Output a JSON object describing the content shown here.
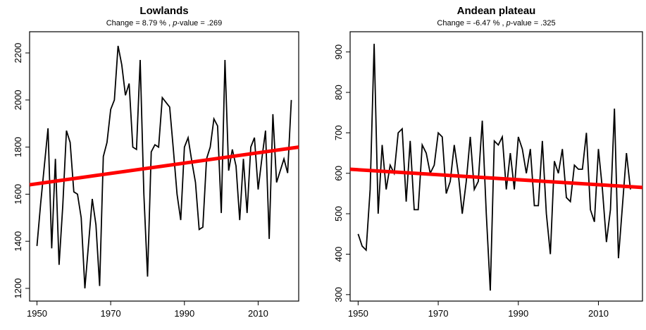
{
  "chart_data": [
    {
      "type": "line",
      "title": "Lowlands",
      "subtitle": [
        "Change = 8.79 % , ",
        "p",
        "-value = .269"
      ],
      "x": [
        1950,
        1951,
        1952,
        1953,
        1954,
        1955,
        1956,
        1957,
        1958,
        1959,
        1960,
        1961,
        1962,
        1963,
        1964,
        1965,
        1966,
        1967,
        1968,
        1969,
        1970,
        1971,
        1972,
        1973,
        1974,
        1975,
        1976,
        1977,
        1978,
        1979,
        1980,
        1981,
        1982,
        1983,
        1984,
        1985,
        1986,
        1987,
        1988,
        1989,
        1990,
        1991,
        1992,
        1993,
        1994,
        1995,
        1996,
        1997,
        1998,
        1999,
        2000,
        2001,
        2002,
        2003,
        2004,
        2005,
        2006,
        2007,
        2008,
        2009,
        2010,
        2011,
        2012,
        2013,
        2014,
        2015,
        2016,
        2017,
        2018,
        2019
      ],
      "series": [
        {
          "color": "#000000",
          "values": [
            1380,
            1560,
            1720,
            1880,
            1370,
            1750,
            1300,
            1550,
            1870,
            1820,
            1610,
            1600,
            1500,
            1200,
            1390,
            1580,
            1470,
            1210,
            1760,
            1820,
            1960,
            2000,
            2230,
            2150,
            2020,
            2070,
            1800,
            1790,
            2170,
            1600,
            1250,
            1780,
            1810,
            1800,
            2010,
            1990,
            1970,
            1790,
            1600,
            1490,
            1800,
            1840,
            1740,
            1650,
            1450,
            1460,
            1750,
            1800,
            1920,
            1890,
            1520,
            2170,
            1700,
            1790,
            1720,
            1490,
            1750,
            1520,
            1800,
            1840,
            1620,
            1750,
            1870,
            1410,
            1940,
            1650,
            1700,
            1750,
            1690,
            2000
          ]
        }
      ],
      "trend": {
        "x": [
          1948,
          2021
        ],
        "values": [
          1640,
          1800
        ],
        "color": "#ff0000"
      },
      "xlim": [
        1948,
        2021
      ],
      "xticks": [
        1950,
        1970,
        1990,
        2010
      ],
      "ylim": [
        1146,
        2290
      ],
      "yticks": [
        1200,
        1400,
        1600,
        1800,
        2000,
        2200
      ]
    },
    {
      "type": "line",
      "title": "Andean plateau",
      "subtitle": [
        "Change = -6.47 % , ",
        "p",
        "-value = .325"
      ],
      "x": [
        1950,
        1951,
        1952,
        1953,
        1954,
        1955,
        1956,
        1957,
        1958,
        1959,
        1960,
        1961,
        1962,
        1963,
        1964,
        1965,
        1966,
        1967,
        1968,
        1969,
        1970,
        1971,
        1972,
        1973,
        1974,
        1975,
        1976,
        1977,
        1978,
        1979,
        1980,
        1981,
        1982,
        1983,
        1984,
        1985,
        1986,
        1987,
        1988,
        1989,
        1990,
        1991,
        1992,
        1993,
        1994,
        1995,
        1996,
        1997,
        1998,
        1999,
        2000,
        2001,
        2002,
        2003,
        2004,
        2005,
        2006,
        2007,
        2008,
        2009,
        2010,
        2011,
        2012,
        2013,
        2014,
        2015,
        2016,
        2017,
        2018
      ],
      "series": [
        {
          "color": "#000000",
          "values": [
            450,
            420,
            410,
            560,
            920,
            500,
            670,
            560,
            620,
            600,
            700,
            710,
            530,
            680,
            510,
            510,
            670,
            650,
            600,
            620,
            700,
            690,
            550,
            580,
            670,
            600,
            500,
            580,
            690,
            560,
            580,
            730,
            500,
            310,
            680,
            670,
            690,
            560,
            650,
            560,
            690,
            660,
            600,
            660,
            520,
            520,
            680,
            500,
            400,
            630,
            600,
            660,
            540,
            530,
            620,
            610,
            610,
            700,
            510,
            480,
            660,
            560,
            430,
            510,
            760,
            390,
            520,
            650,
            560
          ]
        }
      ],
      "trend": {
        "x": [
          1948,
          2021
        ],
        "values": [
          610,
          565
        ],
        "color": "#ff0000"
      },
      "xlim": [
        1948,
        2021
      ],
      "xticks": [
        1950,
        1970,
        1990,
        2010
      ],
      "ylim": [
        284,
        950
      ],
      "yticks": [
        300,
        400,
        500,
        600,
        700,
        800,
        900
      ]
    }
  ]
}
